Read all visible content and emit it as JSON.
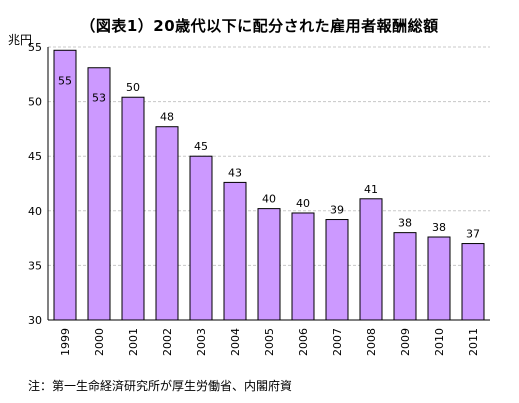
{
  "chart_data": {
    "type": "bar",
    "title": "（図表1）20歳代以下に配分された雇用者報酬総額",
    "ylabel": "兆円",
    "xlabel": "",
    "categories": [
      "1999",
      "2000",
      "2001",
      "2002",
      "2003",
      "2004",
      "2005",
      "2006",
      "2007",
      "2008",
      "2009",
      "2010",
      "2011"
    ],
    "values": [
      54.7,
      53.1,
      50.4,
      47.7,
      45.0,
      42.6,
      40.2,
      39.8,
      39.2,
      41.1,
      38.0,
      37.6,
      37.0
    ],
    "data_labels": [
      "55",
      "53",
      "50",
      "48",
      "45",
      "43",
      "40",
      "40",
      "39",
      "41",
      "38",
      "38",
      "37"
    ],
    "ylim": [
      30,
      55
    ],
    "yticks": [
      "30",
      "35",
      "40",
      "45",
      "50",
      "55"
    ],
    "grid": true,
    "colors": {
      "bar": "#cc99ff",
      "grid": "#c8c8c8"
    },
    "note": "注：第一生命経済研究所が厚生労働省、内閣府資"
  }
}
